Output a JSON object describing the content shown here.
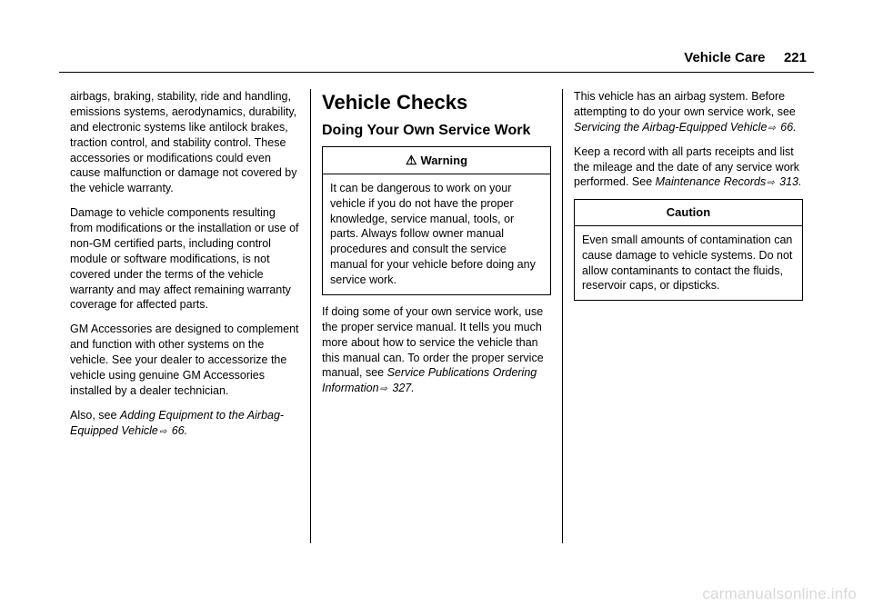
{
  "header": {
    "section": "Vehicle Care",
    "page": "221"
  },
  "col1": {
    "p1": "airbags, braking, stability, ride and handling, emissions systems, aerodynamics, durability, and electronic systems like antilock brakes, traction control, and stability control. These accessories or modifications could even cause malfunction or damage not covered by the vehicle warranty.",
    "p2": "Damage to vehicle components resulting from modifications or the installation or use of non-GM certified parts, including control module or software modifications, is not covered under the terms of the vehicle warranty and may affect remaining warranty coverage for affected parts.",
    "p3": "GM Accessories are designed to complement and function with other systems on the vehicle. See your dealer to accessorize the vehicle using genuine GM Accessories installed by a dealer technician.",
    "p4_a": "Also, see ",
    "p4_b": "Adding Equipment to the Airbag-Equipped Vehicle",
    "p4_c": " 66."
  },
  "col2": {
    "h1": "Vehicle Checks",
    "h2": "Doing Your Own Service Work",
    "warning": {
      "title": "Warning",
      "body": "It can be dangerous to work on your vehicle if you do not have the proper knowledge, service manual, tools, or parts. Always follow owner manual procedures and consult the service manual for your vehicle before doing any service work."
    },
    "p1_a": "If doing some of your own service work, use the proper service manual. It tells you much more about how to service the vehicle than this manual can. To order the proper service manual, see ",
    "p1_b": "Service Publications Ordering Information",
    "p1_c": " 327."
  },
  "col3": {
    "p1_a": "This vehicle has an airbag system. Before attempting to do your own service work, see ",
    "p1_b": "Servicing the Airbag-Equipped Vehicle",
    "p1_c": " 66.",
    "p2_a": "Keep a record with all parts receipts and list the mileage and the date of any service work performed. See ",
    "p2_b": "Maintenance Records",
    "p2_c": " 313.",
    "caution": {
      "title": "Caution",
      "body": "Even small amounts of contamination can cause damage to vehicle systems. Do not allow contaminants to contact the fluids, reservoir caps, or dipsticks."
    }
  },
  "watermark": "carmanualsonline.info"
}
